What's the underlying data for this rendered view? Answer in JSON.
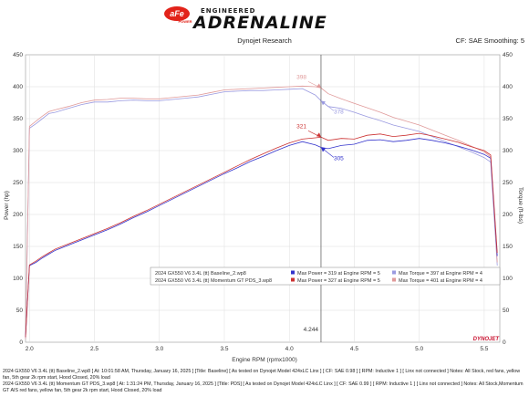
{
  "header": {
    "logo_main": "aFe",
    "logo_sub": "POWER",
    "brand_top": "ENGINEERED",
    "brand_main": "ADRENALINE",
    "left_label": "Dynojet Research",
    "right_label": "CF: SAE Smoothing: 5"
  },
  "chart_data": {
    "type": "line",
    "xlabel": "Engine RPM (rpmx1000)",
    "ylabel_left": "Power (hp)",
    "ylabel_right": "Torque (ft-lbs)",
    "xlim": [
      1.97,
      5.62
    ],
    "ylim": [
      0,
      450
    ],
    "x_ticks": [
      2.0,
      2.5,
      3.0,
      3.5,
      4.0,
      4.5,
      5.0,
      5.5
    ],
    "x_tick_labels": [
      "2.0",
      "2.5",
      "3.0",
      "3.5",
      "4.0",
      "4.5",
      "5.0",
      "5.5"
    ],
    "y_ticks": [
      0,
      50,
      100,
      150,
      200,
      250,
      300,
      350,
      400,
      450
    ],
    "y_tick_labels": [
      "0",
      "50",
      "100",
      "150",
      "200",
      "250",
      "300",
      "350",
      "400",
      "450"
    ],
    "grid": true,
    "cursor_x": 4.244,
    "cursor_label": "4.244",
    "series": [
      {
        "name": "Max Power = 319 at Engine RPM = 5",
        "color": "#3333cc",
        "x": [
          1.97,
          2.0,
          2.05,
          2.1,
          2.15,
          2.2,
          2.3,
          2.4,
          2.5,
          2.6,
          2.7,
          2.8,
          2.9,
          3.0,
          3.1,
          3.2,
          3.3,
          3.4,
          3.5,
          3.6,
          3.7,
          3.8,
          3.9,
          4.0,
          4.1,
          4.2,
          4.244,
          4.3,
          4.4,
          4.5,
          4.6,
          4.7,
          4.8,
          4.9,
          5.0,
          5.1,
          5.2,
          5.3,
          5.4,
          5.5,
          5.55,
          5.6
        ],
        "y": [
          8,
          120,
          125,
          132,
          138,
          144,
          152,
          160,
          168,
          176,
          185,
          195,
          204,
          214,
          224,
          234,
          244,
          254,
          264,
          273,
          283,
          291,
          300,
          308,
          314,
          309,
          305,
          303,
          308,
          310,
          316,
          317,
          314,
          316,
          319,
          316,
          312,
          307,
          301,
          294,
          288,
          135
        ]
      },
      {
        "name": "Max Power = 327 at Engine RPM = 5",
        "color": "#cc3333",
        "x": [
          1.97,
          2.0,
          2.05,
          2.1,
          2.15,
          2.2,
          2.3,
          2.4,
          2.5,
          2.6,
          2.7,
          2.8,
          2.9,
          3.0,
          3.1,
          3.2,
          3.3,
          3.4,
          3.5,
          3.6,
          3.7,
          3.8,
          3.9,
          4.0,
          4.1,
          4.2,
          4.244,
          4.3,
          4.4,
          4.5,
          4.6,
          4.7,
          4.8,
          4.9,
          5.0,
          5.1,
          5.2,
          5.3,
          5.4,
          5.5,
          5.55,
          5.6
        ],
        "y": [
          8,
          121,
          127,
          134,
          140,
          146,
          154,
          162,
          170,
          178,
          187,
          197,
          206,
          216,
          226,
          236,
          246,
          256,
          266,
          276,
          286,
          295,
          304,
          312,
          318,
          320,
          321,
          316,
          319,
          318,
          324,
          326,
          322,
          324,
          327,
          323,
          318,
          313,
          306,
          300,
          293,
          140
        ]
      },
      {
        "name": "Max Torque = 397 at Engine RPM = 4",
        "color": "#9a9ae0",
        "x": [
          1.97,
          2.0,
          2.05,
          2.1,
          2.15,
          2.2,
          2.3,
          2.4,
          2.5,
          2.6,
          2.7,
          2.8,
          2.9,
          3.0,
          3.1,
          3.2,
          3.3,
          3.4,
          3.5,
          3.6,
          3.7,
          3.8,
          3.9,
          4.0,
          4.1,
          4.2,
          4.244,
          4.3,
          4.4,
          4.5,
          4.6,
          4.7,
          4.8,
          4.9,
          5.0,
          5.1,
          5.2,
          5.3,
          5.4,
          5.5,
          5.55,
          5.6
        ],
        "y": [
          5,
          335,
          342,
          350,
          358,
          360,
          366,
          372,
          376,
          376,
          378,
          379,
          378,
          378,
          380,
          382,
          384,
          388,
          392,
          393,
          394,
          394,
          395,
          396,
          397,
          387,
          378,
          369,
          366,
          360,
          353,
          347,
          340,
          335,
          330,
          322,
          314,
          306,
          298,
          289,
          282,
          120
        ]
      },
      {
        "name": "Max Torque = 401 at Engine RPM = 4",
        "color": "#e09a9a",
        "x": [
          1.97,
          2.0,
          2.05,
          2.1,
          2.15,
          2.2,
          2.3,
          2.4,
          2.5,
          2.6,
          2.7,
          2.8,
          2.9,
          3.0,
          3.1,
          3.2,
          3.3,
          3.4,
          3.5,
          3.6,
          3.7,
          3.8,
          3.9,
          4.0,
          4.1,
          4.2,
          4.244,
          4.3,
          4.4,
          4.5,
          4.6,
          4.7,
          4.8,
          4.9,
          5.0,
          5.1,
          5.2,
          5.3,
          5.4,
          5.5,
          5.55,
          5.6
        ],
        "y": [
          5,
          338,
          346,
          354,
          361,
          364,
          369,
          375,
          379,
          380,
          382,
          382,
          381,
          381,
          383,
          385,
          387,
          391,
          395,
          396,
          397,
          398,
          399,
          400,
          401,
          400,
          398,
          389,
          381,
          374,
          367,
          360,
          352,
          346,
          340,
          332,
          324,
          316,
          307,
          298,
          290,
          125
        ]
      }
    ],
    "cursor_values": [
      {
        "series": 0,
        "value": 305,
        "label": "305"
      },
      {
        "series": 1,
        "value": 321,
        "label": "321"
      },
      {
        "series": 2,
        "value": 378,
        "label": "378"
      },
      {
        "series": 3,
        "value": 398,
        "label": "398"
      }
    ],
    "legend": {
      "position": "center-right",
      "rows": [
        {
          "file": "2024 GX550 V6 3.4L (tt) Baseline_2.wp8",
          "power_label": "Max Power = 319 at Engine RPM = 5",
          "power_color": "#3333cc",
          "torque_label": "Max Torque = 397 at Engine RPM = 4",
          "torque_color": "#9a9ae0"
        },
        {
          "file": "2024 GX550 V6 3.4L (tt) Momentum GT PDS_3.wp8",
          "power_label": "Max Power = 327 at Engine RPM = 5",
          "power_color": "#cc3333",
          "torque_label": "Max Torque = 401 at Engine RPM = 4",
          "torque_color": "#e09a9a"
        }
      ]
    }
  },
  "watermark": "DYNOJET",
  "footer": {
    "line1": "2024 GX550 V6 3.4L (tt) Baseline_2.wp8 [ At: 10:01:58 AM, Thursday, January 16, 2025 ] [Title: Baseline] [ As tested on Dynojet Model 424xLC Linx ] [ CF: SAE 0.98 ] [ RPM: Inductive 1 ] [ Linx not connected ] Notes: All Stock, red fans, yellow fan, 5th gear 2k rpm start, Hood Closed, 20% load",
    "line2": "2024 GX550 V6 3.4L (tt) Momentum GT PDS_3.wp8 [ At: 1:31:24 PM, Thursday, January 16, 2025 ] [Title: PDS] [ As tested on Dynojet Model 424xLC Linx ] [ CF: SAE 0.99 ] [ RPM: Inductive 1 ] [ Linx not connected ] Notes: All Stock,Momentum GT AIS red fans, yellow fan, 5th gear 2k rpm start, Hood Closed, 20% load"
  }
}
